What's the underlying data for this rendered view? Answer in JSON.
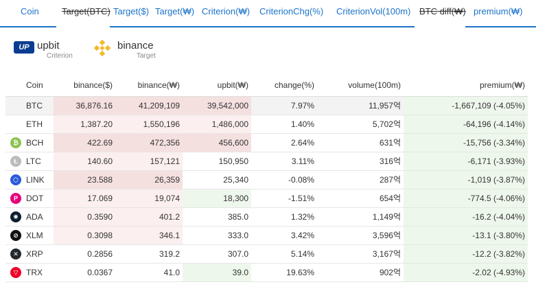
{
  "tabs": [
    {
      "label": "Coin",
      "strike": false
    },
    {
      "label": "Target(BTC)",
      "strike": true
    },
    {
      "label": "Target($)",
      "strike": false
    },
    {
      "label": "Target(₩)",
      "strike": false
    },
    {
      "label": "Criterion(₩)",
      "strike": false
    },
    {
      "label": "CriterionChg(%)",
      "strike": false
    },
    {
      "label": "CriterionVol(100m)",
      "strike": false
    },
    {
      "label": "BTC diff(₩)",
      "strike": true
    },
    {
      "label": "premium(₩)",
      "strike": false
    }
  ],
  "exchanges": {
    "criterion": {
      "name": "upbit",
      "role": "Criterion",
      "logo_text": "UP"
    },
    "target": {
      "name": "binance",
      "role": "Target"
    }
  },
  "table": {
    "headers": [
      "Coin",
      "binance($)",
      "binance(₩)",
      "upbit(₩)",
      "change(%)",
      "volume(100m)",
      "premium(₩)"
    ],
    "rows": [
      {
        "coin": "BTC",
        "bus": "36,876.16",
        "bkrw": "41,209,109",
        "upbit": "39,542,000",
        "change": "7.97%",
        "volume": "11,957억",
        "premium": "-1,667,109 (-4.05%)",
        "icon_color": "",
        "icon_glyph": ""
      },
      {
        "coin": "ETH",
        "bus": "1,387.20",
        "bkrw": "1,550,196",
        "upbit": "1,486,000",
        "change": "1.40%",
        "volume": "5,702억",
        "premium": "-64,196 (-4.14%)",
        "icon_color": "",
        "icon_glyph": ""
      },
      {
        "coin": "BCH",
        "bus": "422.69",
        "bkrw": "472,356",
        "upbit": "456,600",
        "change": "2.64%",
        "volume": "631억",
        "premium": "-15,756 (-3.34%)",
        "icon_color": "#8dc351",
        "icon_glyph": "₿"
      },
      {
        "coin": "LTC",
        "bus": "140.60",
        "bkrw": "157,121",
        "upbit": "150,950",
        "change": "3.11%",
        "volume": "316억",
        "premium": "-6,171 (-3.93%)",
        "icon_color": "#bfbbbb",
        "icon_glyph": "Ł"
      },
      {
        "coin": "LINK",
        "bus": "23.588",
        "bkrw": "26,359",
        "upbit": "25,340",
        "change": "-0.08%",
        "volume": "287억",
        "premium": "-1,019 (-3.87%)",
        "icon_color": "#2a5ada",
        "icon_glyph": "⬡"
      },
      {
        "coin": "DOT",
        "bus": "17.069",
        "bkrw": "19,074",
        "upbit": "18,300",
        "change": "-1.51%",
        "volume": "654억",
        "premium": "-774.5 (-4.06%)",
        "icon_color": "#e6007a",
        "icon_glyph": "P"
      },
      {
        "coin": "ADA",
        "bus": "0.3590",
        "bkrw": "401.2",
        "upbit": "385.0",
        "change": "1.32%",
        "volume": "1,149억",
        "premium": "-16.2 (-4.04%)",
        "icon_color": "#0d1e30",
        "icon_glyph": "✺"
      },
      {
        "coin": "XLM",
        "bus": "0.3098",
        "bkrw": "346.1",
        "upbit": "333.0",
        "change": "3.42%",
        "volume": "3,596억",
        "premium": "-13.1 (-3.80%)",
        "icon_color": "#111111",
        "icon_glyph": "⊘"
      },
      {
        "coin": "XRP",
        "bus": "0.2856",
        "bkrw": "319.2",
        "upbit": "307.0",
        "change": "5.14%",
        "volume": "3,167억",
        "premium": "-12.2 (-3.82%)",
        "icon_color": "#23292f",
        "icon_glyph": "✕"
      },
      {
        "coin": "TRX",
        "bus": "0.0367",
        "bkrw": "41.0",
        "upbit": "39.0",
        "change": "19.63%",
        "volume": "902억",
        "premium": "-2.02 (-4.93%)",
        "icon_color": "#ef0027",
        "icon_glyph": "▽"
      }
    ]
  },
  "colors": {
    "accent": "#1a73c9",
    "up": "#1c3fd6",
    "down": "#d23030",
    "binance": "#f3ba2f",
    "upbit": "#0a3d91"
  }
}
